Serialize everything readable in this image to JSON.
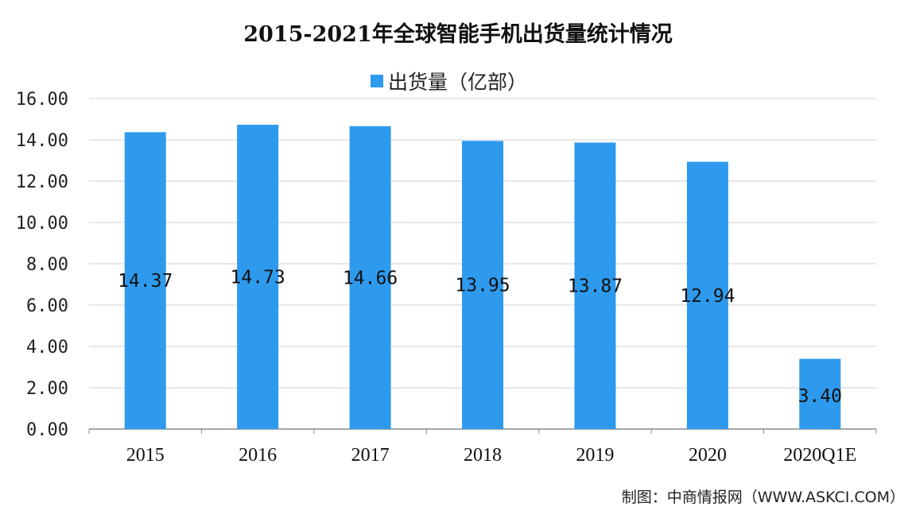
{
  "colors": {
    "bar": "#2E9AEE",
    "grid": "#d0d0d0",
    "axis": "#888888"
  },
  "source_note": "制图：中商情报网（WWW.ASKCI.COM）",
  "chart_data": {
    "type": "bar",
    "title": "2015-2021年全球智能手机出货量统计情况",
    "categories": [
      "2015",
      "2016",
      "2017",
      "2018",
      "2019",
      "2020",
      "2020Q1E"
    ],
    "series": [
      {
        "name": "出货量（亿部）",
        "values": [
          14.37,
          14.73,
          14.66,
          13.95,
          13.87,
          12.94,
          3.4
        ],
        "data_labels": [
          "14.37",
          "14.73",
          "14.66",
          "13.95",
          "13.87",
          "12.94",
          "3.40"
        ]
      }
    ],
    "ylim": [
      0,
      16
    ],
    "yticks": [
      "0.00",
      "2.00",
      "4.00",
      "6.00",
      "8.00",
      "10.00",
      "12.00",
      "14.00",
      "16.00"
    ],
    "grid": true,
    "legend_position": "top-center"
  }
}
